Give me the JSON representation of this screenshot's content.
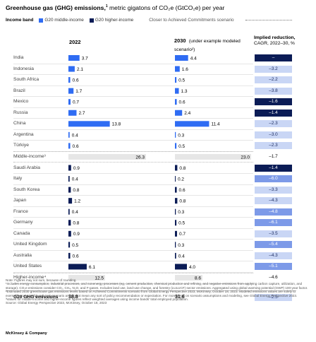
{
  "title": {
    "bold": "Greenhouse gas (GHG) emissions,",
    "sup": "1",
    "rest": " metric gigatons of CO₂e (GtCO₂e) per year"
  },
  "legend": {
    "label": "Income band",
    "middle": "G20 middle-income",
    "higher": "G20 higher-income",
    "scenario": "Closer to Achieved Commitments scenario"
  },
  "headers": {
    "col2022": "2022",
    "col2030": "2030",
    "col2030_note": "(under example modeled scenario²)",
    "implied_title": "Implied reduction,",
    "implied_sub": "CAGR, 2022–30, %"
  },
  "colors": {
    "middle": "#2f6cf3",
    "higher": "#0b1c56",
    "subtotal": "#e6e6e6"
  },
  "chart_data": {
    "type": "bar",
    "categories": [
      "India",
      "Indonesia",
      "South Africa",
      "Brazil",
      "Mexico",
      "Russia",
      "China",
      "Argentina",
      "Türkiye",
      "Middle-income³",
      "Saudi Arabia",
      "Italy",
      "South Korea",
      "Japan",
      "France",
      "Germany",
      "Canada",
      "United Kingdom",
      "Australia",
      "United States",
      "Higher-income⁴"
    ],
    "groups": [
      "middle",
      "middle",
      "middle",
      "middle",
      "middle",
      "middle",
      "middle",
      "middle",
      "middle",
      "subtotal",
      "higher",
      "higher",
      "higher",
      "higher",
      "higher",
      "higher",
      "higher",
      "higher",
      "higher",
      "higher",
      "subtotal"
    ],
    "series": [
      {
        "name": "2022",
        "values": [
          3.7,
          2.1,
          0.6,
          1.7,
          0.7,
          2.7,
          13.8,
          0.4,
          0.6,
          26.3,
          0.9,
          0.4,
          0.8,
          1.2,
          0.4,
          0.8,
          0.9,
          0.5,
          0.6,
          6.1,
          12.5
        ]
      },
      {
        "name": "2030",
        "values": [
          4.4,
          1.6,
          0.5,
          1.3,
          0.6,
          2.4,
          11.4,
          0.3,
          0.5,
          23.0,
          0.8,
          0.2,
          0.6,
          0.8,
          0.3,
          0.5,
          0.7,
          0.3,
          0.4,
          4.0,
          8.6
        ]
      }
    ],
    "implied_reduction": [
      "–",
      "–3.2",
      "–2.2",
      "–3.8",
      "–1.6",
      "–1.4",
      "–2.3",
      "–3.0",
      "–2.3",
      "–1.7",
      "–1.4",
      "–6.0",
      "–3.3",
      "–4.3",
      "–4.8",
      "–6.1",
      "–3.5",
      "–5.4",
      "–4.3",
      "–5.1",
      "–4.6"
    ],
    "implied_colors": [
      "#0b1c56",
      "#c9d6f5",
      "#c9d6f5",
      "#c9d6f5",
      "#0b1c56",
      "#0b1c56",
      "#c9d6f5",
      "#c9d6f5",
      "#c9d6f5",
      "#ffffff",
      "#0b1c56",
      "#7d9ae8",
      "#c9d6f5",
      "#c9d6f5",
      "#7d9ae8",
      "#7d9ae8",
      "#c9d6f5",
      "#7d9ae8",
      "#c9d6f5",
      "#7d9ae8",
      "#ffffff"
    ],
    "implied_text_colors": [
      "#ffffff",
      "#1b2a5e",
      "#1b2a5e",
      "#1b2a5e",
      "#ffffff",
      "#ffffff",
      "#1b2a5e",
      "#1b2a5e",
      "#1b2a5e",
      "#000000",
      "#ffffff",
      "#ffffff",
      "#1b2a5e",
      "#1b2a5e",
      "#ffffff",
      "#ffffff",
      "#1b2a5e",
      "#ffffff",
      "#1b2a5e",
      "#ffffff",
      "#000000"
    ],
    "total": {
      "label": "G20 GHG emissions",
      "v2022": "38.8",
      "v2030": "31.6",
      "implied": "–2.5",
      "implied_color": "#c9d6f5",
      "implied_text_color": "#1b2a5e"
    }
  },
  "notes": [
    "Note: Figures may not sum, because of rounding.",
    "¹Includes energy consumption, industrial processes, and nonenergy processes (eg, cement production, chemical production and refining, and negative emissions from applying carbon capture, utilization, and storage). CO₂e emissions consider CO₂, CH₄, N₂O, and F-gases. Includes land use, land-use change, and forestry (LULUCF) sector emissions. Aggregated using global warming potential (GWP) 100-year factor.",
    "²Estimated 2030 greenhouse gas emissions levels based on Achieved Commitments scenario from Global Energy Perspective 2023, McKinsey, October 18, 2023. Modeled emissions values are solely to exemplify one possible net-zero scenario and do not mean any sort of policy recommendation or expectation. For more detail on scenario assumptions and modeling, see Global Energy Perspective 2023.",
    "³Values for middle-income and higher-income figures reflect weighted averages using income bands' total employed population.",
    "Source: Global Energy Perspective 2023, McKinsey, October 18, 2023"
  ],
  "footer": "McKinsey & Company"
}
